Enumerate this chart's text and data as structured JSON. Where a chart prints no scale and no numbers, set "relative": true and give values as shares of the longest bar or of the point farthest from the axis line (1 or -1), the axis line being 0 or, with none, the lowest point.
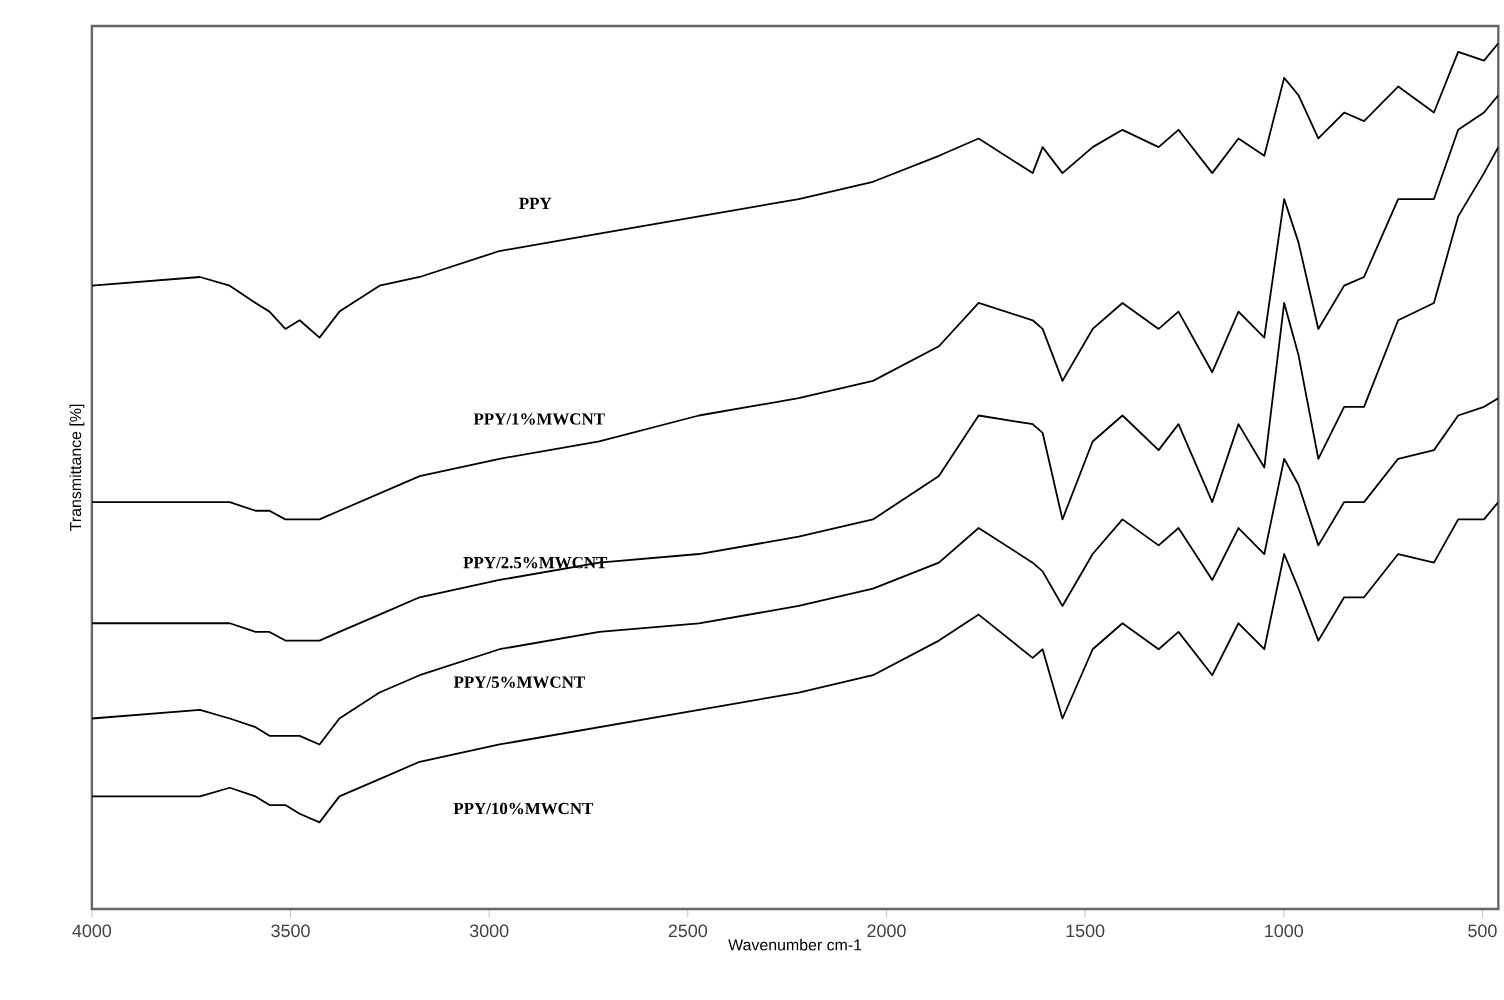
{
  "chart_data": {
    "type": "line",
    "relative": true,
    "xlabel": "Wavenumber cm-1",
    "ylabel": "Transmittance [%]",
    "xlim": [
      4000,
      460
    ],
    "xticks": [
      4000,
      3500,
      3000,
      2500,
      2000,
      1500,
      1000,
      500
    ],
    "grid": false,
    "legend": false,
    "marker": "none",
    "line_style": "solid",
    "x": [
      4000,
      3728,
      3653,
      3588,
      3553,
      3513,
      3477,
      3427,
      3377,
      3276,
      3175,
      2974,
      2723,
      2472,
      2221,
      2034,
      1868,
      1768,
      1632,
      1607,
      1557,
      1481,
      1406,
      1315,
      1265,
      1180,
      1114,
      1049,
      999,
      963,
      913,
      848,
      798,
      712,
      622,
      561,
      496,
      460
    ],
    "series": [
      {
        "name": "PPY",
        "color": "#000000",
        "values": [
          0.72,
          0.73,
          0.72,
          0.7,
          0.69,
          0.67,
          0.68,
          0.66,
          0.69,
          0.72,
          0.73,
          0.76,
          0.78,
          0.8,
          0.82,
          0.84,
          0.87,
          0.89,
          0.85,
          0.88,
          0.85,
          0.88,
          0.9,
          0.88,
          0.9,
          0.85,
          0.89,
          0.87,
          0.96,
          0.94,
          0.89,
          0.92,
          0.91,
          0.95,
          0.92,
          0.99,
          0.98,
          1.0
        ]
      },
      {
        "name": "PPY/1%MWCNT",
        "color": "#000000",
        "values": [
          0.47,
          0.47,
          0.47,
          0.46,
          0.46,
          0.45,
          0.45,
          0.45,
          0.46,
          0.48,
          0.5,
          0.52,
          0.54,
          0.57,
          0.59,
          0.61,
          0.65,
          0.7,
          0.68,
          0.67,
          0.61,
          0.67,
          0.7,
          0.67,
          0.69,
          0.62,
          0.69,
          0.66,
          0.82,
          0.77,
          0.67,
          0.72,
          0.73,
          0.82,
          0.82,
          0.9,
          0.92,
          0.94
        ]
      },
      {
        "name": "PPY/2.5%MWCNT",
        "color": "#000000",
        "values": [
          0.33,
          0.33,
          0.33,
          0.32,
          0.32,
          0.31,
          0.31,
          0.31,
          0.32,
          0.34,
          0.36,
          0.38,
          0.4,
          0.41,
          0.43,
          0.45,
          0.5,
          0.57,
          0.56,
          0.55,
          0.45,
          0.54,
          0.57,
          0.53,
          0.56,
          0.47,
          0.56,
          0.51,
          0.7,
          0.64,
          0.52,
          0.58,
          0.58,
          0.68,
          0.7,
          0.8,
          0.85,
          0.88
        ]
      },
      {
        "name": "PPY/5%MWCNT",
        "color": "#000000",
        "values": [
          0.22,
          0.23,
          0.22,
          0.21,
          0.2,
          0.2,
          0.2,
          0.19,
          0.22,
          0.25,
          0.27,
          0.3,
          0.32,
          0.33,
          0.35,
          0.37,
          0.4,
          0.44,
          0.4,
          0.39,
          0.35,
          0.41,
          0.45,
          0.42,
          0.44,
          0.38,
          0.44,
          0.41,
          0.52,
          0.49,
          0.42,
          0.47,
          0.47,
          0.52,
          0.53,
          0.57,
          0.58,
          0.59
        ]
      },
      {
        "name": "PPY/10%MWCNT",
        "color": "#000000",
        "values": [
          0.13,
          0.13,
          0.14,
          0.13,
          0.12,
          0.12,
          0.11,
          0.1,
          0.13,
          0.15,
          0.17,
          0.19,
          0.21,
          0.23,
          0.25,
          0.27,
          0.31,
          0.34,
          0.29,
          0.3,
          0.22,
          0.3,
          0.33,
          0.3,
          0.32,
          0.27,
          0.33,
          0.3,
          0.41,
          0.37,
          0.31,
          0.36,
          0.36,
          0.41,
          0.4,
          0.45,
          0.45,
          0.47
        ]
      }
    ]
  }
}
